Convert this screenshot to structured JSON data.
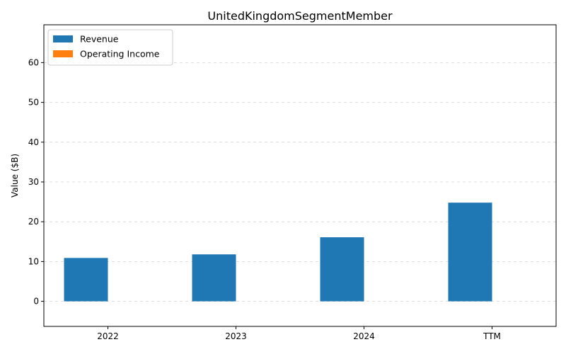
{
  "chart_data": {
    "type": "bar",
    "title": "UnitedKingdomSegmentMember",
    "xlabel": "",
    "ylabel": "Value ($B)",
    "categories": [
      "2022",
      "2023",
      "2024",
      "TTM"
    ],
    "series": [
      {
        "name": "Revenue",
        "color": "#1f77b4",
        "values": [
          10.9,
          11.8,
          16.1,
          24.8
        ]
      },
      {
        "name": "Operating Income",
        "color": "#ff7f0e",
        "values": [
          0,
          0,
          0,
          0
        ]
      }
    ],
    "ylim": [
      -6.3,
      69.5
    ],
    "yticks": [
      0,
      10,
      20,
      30,
      40,
      50,
      60
    ],
    "grid": true,
    "legend_position": "top-left"
  }
}
